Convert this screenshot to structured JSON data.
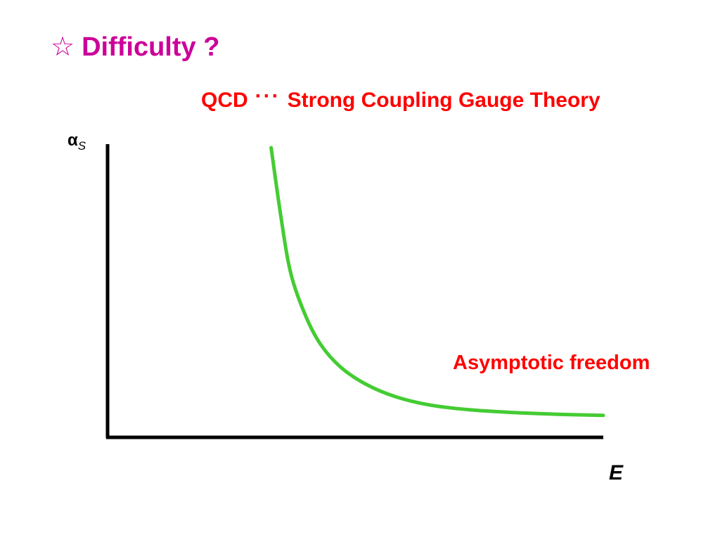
{
  "slide": {
    "title_star": "☆",
    "title": "Difficulty ?",
    "subtitle_left": "QCD",
    "subtitle_dots": "···",
    "subtitle_right": "Strong Coupling Gauge Theory",
    "annotation": "Asymptotic freedom",
    "colors": {
      "title": "#cc0099",
      "subtitle": "#ff0000",
      "curve": "#44cc33",
      "axes": "#000000"
    }
  },
  "chart_data": {
    "type": "line",
    "ylabel_main": "α",
    "ylabel_sub": "S",
    "xlabel": "E",
    "series": [
      {
        "x": [
          0.33,
          0.35,
          0.37,
          0.4,
          0.43,
          0.47,
          0.52,
          0.58,
          0.65,
          0.73,
          0.82,
          0.91,
          1.0
        ],
        "y": [
          1.0,
          0.75,
          0.55,
          0.4,
          0.3,
          0.22,
          0.16,
          0.115,
          0.085,
          0.068,
          0.058,
          0.052,
          0.048
        ]
      }
    ]
  }
}
